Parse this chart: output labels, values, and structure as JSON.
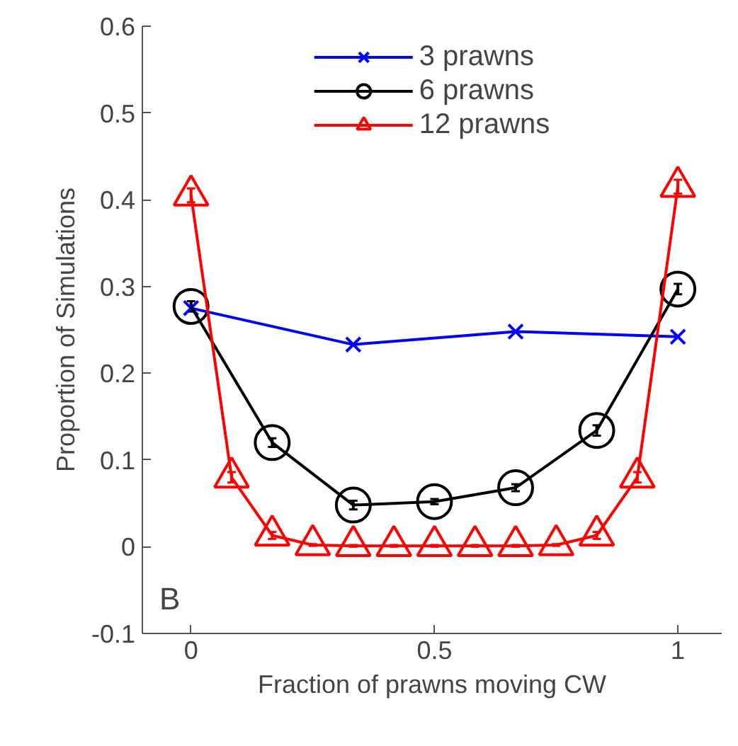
{
  "chart_data": {
    "type": "line",
    "xlabel": "Fraction of prawns moving CW",
    "ylabel": "Proportion of Simulations",
    "xlim": [
      -0.1,
      1.09
    ],
    "ylim": [
      -0.1,
      0.6
    ],
    "xticks": [
      0,
      0.5,
      1
    ],
    "yticks": [
      -0.1,
      0,
      0.1,
      0.2,
      0.3,
      0.4,
      0.5,
      0.6
    ],
    "grid": false,
    "legend": "top",
    "annotations": [
      "B"
    ],
    "series": [
      {
        "name": "3 prawns",
        "color": "#0000ff",
        "marker": "cross",
        "x": [
          0,
          0.3333,
          0.6667,
          1
        ],
        "values": [
          0.275,
          0.233,
          0.248,
          0.242
        ]
      },
      {
        "name": "6 prawns",
        "color": "#000000",
        "marker": "circle",
        "x": [
          0,
          0.1667,
          0.3333,
          0.5,
          0.6667,
          0.8333,
          1
        ],
        "values": [
          0.277,
          0.12,
          0.048,
          0.052,
          0.068,
          0.134,
          0.297
        ],
        "errors": [
          0.006,
          0.005,
          0.005,
          0.003,
          0.004,
          0.006,
          0.006
        ]
      },
      {
        "name": "12 prawns",
        "color": "#ff0000",
        "marker": "triangle",
        "x": [
          0,
          0.0833,
          0.1667,
          0.25,
          0.3333,
          0.4167,
          0.5,
          0.5833,
          0.6667,
          0.75,
          0.8333,
          0.9167,
          1
        ],
        "values": [
          0.405,
          0.08,
          0.013,
          0.002,
          0.001,
          0.001,
          0.001,
          0.001,
          0.001,
          0.002,
          0.013,
          0.08,
          0.415
        ],
        "errors": [
          0.008,
          0.006,
          0.004,
          0.001,
          0.001,
          0.001,
          0.001,
          0.001,
          0.001,
          0.001,
          0.004,
          0.006,
          0.008
        ]
      }
    ]
  }
}
